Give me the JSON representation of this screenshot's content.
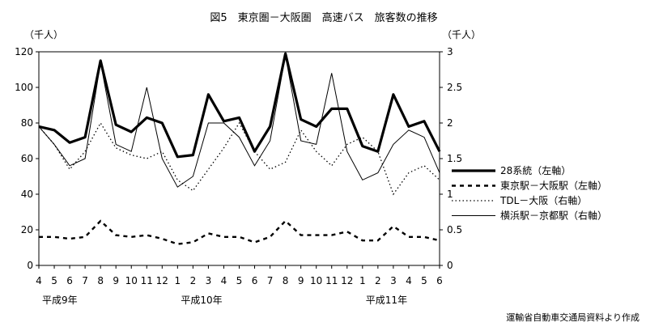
{
  "chart_data": {
    "type": "line",
    "title": "図5　東京圏－大阪圏　高速バス　旅客数の推移",
    "left_unit": "（千人）",
    "right_unit": "（千人）",
    "y_left": {
      "min": 0,
      "max": 120,
      "ticks": [
        0,
        20,
        40,
        60,
        80,
        100,
        120
      ]
    },
    "y_right": {
      "min": 0,
      "max": 3,
      "ticks": [
        "0",
        "0.5",
        "1",
        "1.5",
        "2",
        "2.5",
        "3"
      ]
    },
    "x_tick_labels": [
      "4",
      "5",
      "6",
      "7",
      "8",
      "9",
      "10",
      "11",
      "12",
      "1",
      "2",
      "3",
      "4",
      "5",
      "6",
      "7",
      "8",
      "9",
      "10",
      "11",
      "12",
      "1",
      "2",
      "3",
      "4",
      "5",
      "6"
    ],
    "year_labels": [
      {
        "text": "平成9年",
        "index": 0
      },
      {
        "text": "平成10年",
        "index": 9
      },
      {
        "text": "平成11年",
        "index": 21
      }
    ],
    "source": "運輸省自動車交通局資料より作成",
    "legend_position": "right",
    "series": [
      {
        "name": "28系統（左軸）",
        "axis": "left",
        "style": "thick",
        "values": [
          78,
          76,
          69,
          72,
          115,
          79,
          75,
          83,
          80,
          61,
          62,
          96,
          81,
          83,
          64,
          78,
          119,
          82,
          78,
          88,
          88,
          67,
          64,
          96,
          78,
          81,
          64
        ]
      },
      {
        "name": "東京駅－大阪駅（左軸）",
        "axis": "left",
        "style": "dashed",
        "values": [
          16,
          16,
          15,
          16,
          25,
          17,
          16,
          17,
          15,
          12,
          13,
          18,
          16,
          16,
          13,
          16,
          25,
          17,
          17,
          17,
          19,
          14,
          14,
          22,
          16,
          16,
          14
        ]
      },
      {
        "name": "TDL－大阪（右軸）",
        "axis": "right",
        "style": "dotted",
        "values": [
          1.95,
          1.7,
          1.35,
          1.6,
          2.0,
          1.65,
          1.55,
          1.5,
          1.6,
          1.2,
          1.05,
          1.35,
          1.65,
          2.0,
          1.6,
          1.35,
          1.45,
          1.9,
          1.6,
          1.4,
          1.7,
          1.8,
          1.6,
          1.0,
          1.3,
          1.4,
          1.2
        ]
      },
      {
        "name": "横浜駅－京都駅（右軸）",
        "axis": "right",
        "style": "thin",
        "values": [
          1.95,
          1.7,
          1.4,
          1.5,
          2.85,
          1.7,
          1.6,
          2.5,
          1.5,
          1.1,
          1.25,
          2.0,
          2.0,
          1.8,
          1.4,
          1.75,
          2.95,
          1.75,
          1.7,
          2.7,
          1.6,
          1.2,
          1.3,
          1.7,
          1.9,
          1.8,
          1.3
        ]
      }
    ]
  }
}
